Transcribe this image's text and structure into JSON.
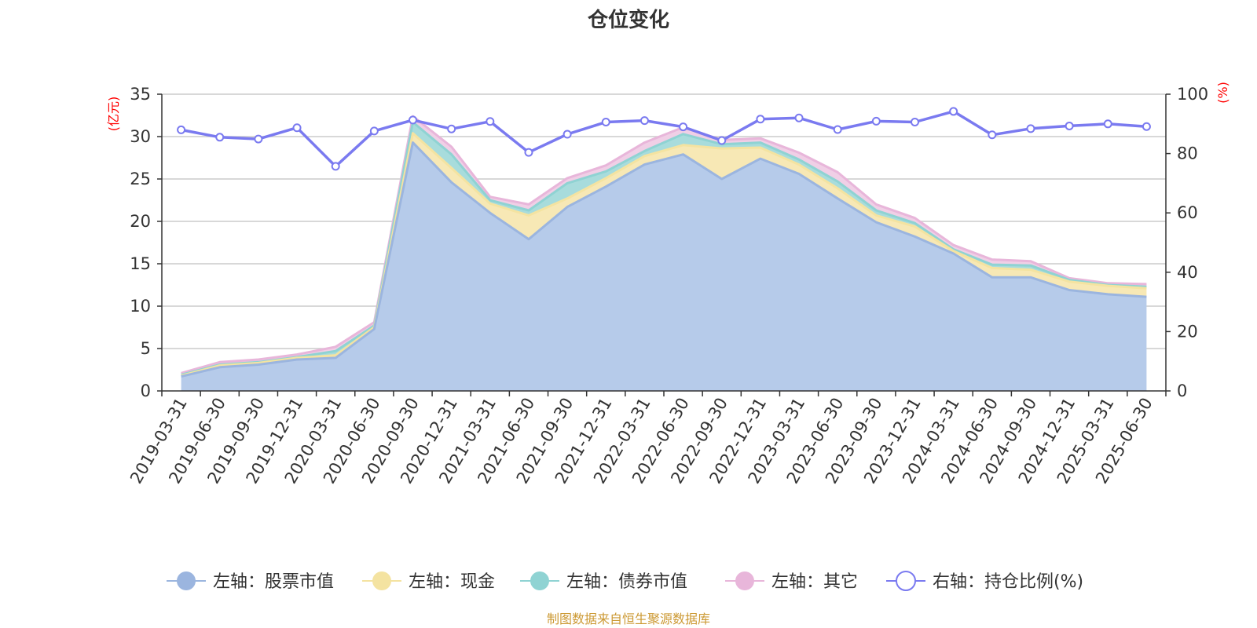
{
  "title": "仓位变化",
  "source_note": "制图数据来自恒生聚源数据库",
  "chart_data": {
    "type": "area",
    "title": "仓位变化",
    "categories": [
      "2019-03-31",
      "2019-06-30",
      "2019-09-30",
      "2019-12-31",
      "2020-03-31",
      "2020-06-30",
      "2020-09-30",
      "2020-12-31",
      "2021-03-31",
      "2021-06-30",
      "2021-09-30",
      "2021-12-31",
      "2022-03-31",
      "2022-06-30",
      "2022-09-30",
      "2022-12-31",
      "2023-03-31",
      "2023-06-30",
      "2023-09-30",
      "2023-12-31",
      "2024-03-31",
      "2024-06-30",
      "2024-09-30",
      "2024-12-31",
      "2025-03-31",
      "2025-06-30"
    ],
    "y_left": {
      "label": "(亿元)",
      "min": 0,
      "max": 35,
      "ticks": [
        0,
        5,
        10,
        15,
        20,
        25,
        30,
        35
      ]
    },
    "y_right": {
      "label": "(%)",
      "min": 0,
      "max": 100,
      "ticks": [
        0,
        20,
        40,
        60,
        80,
        100
      ]
    },
    "grid": true,
    "legend_position": "bottom",
    "stack_order": [
      "stock",
      "cash",
      "bond",
      "other"
    ],
    "series": [
      {
        "key": "stock",
        "name": "左轴：股票市值",
        "axis": "left",
        "kind": "stacked-area",
        "fill": "#b6cbea",
        "stroke": "#9bb5df",
        "values": [
          1.7,
          2.8,
          3.1,
          3.7,
          3.9,
          7.3,
          29.3,
          24.6,
          21.0,
          17.9,
          21.7,
          24.1,
          26.7,
          27.9,
          25.0,
          27.4,
          25.6,
          22.7,
          19.9,
          18.2,
          16.2,
          13.4,
          13.4,
          11.9,
          11.4,
          11.1
        ]
      },
      {
        "key": "cash",
        "name": "左轴：现金",
        "axis": "left",
        "kind": "stacked-area",
        "fill": "#f7e8b5",
        "stroke": "#f4e3a1",
        "values": [
          0.1,
          0.2,
          0.2,
          0.2,
          0.3,
          0.2,
          1.1,
          1.7,
          1.1,
          2.8,
          1.0,
          1.0,
          1.0,
          1.1,
          3.6,
          1.3,
          1.1,
          1.2,
          0.8,
          1.2,
          0.3,
          1.1,
          0.9,
          1.0,
          1.0,
          1.0
        ]
      },
      {
        "key": "bond",
        "name": "左轴：债券市值",
        "axis": "left",
        "kind": "stacked-area",
        "fill": "#a8dcdc",
        "stroke": "#8fd3d3",
        "values": [
          0.1,
          0.1,
          0.1,
          0.1,
          0.5,
          0.2,
          1.3,
          1.6,
          0.4,
          0.6,
          1.8,
          0.8,
          0.6,
          1.3,
          0.5,
          0.6,
          0.6,
          0.8,
          0.6,
          0.4,
          0.2,
          0.4,
          0.5,
          0.2,
          0.1,
          0.2
        ]
      },
      {
        "key": "other",
        "name": "左轴：其它",
        "axis": "left",
        "kind": "stacked-area",
        "fill": "#f0cfe6",
        "stroke": "#e8b6da",
        "values": [
          0.2,
          0.3,
          0.3,
          0.3,
          0.5,
          0.4,
          0.7,
          0.9,
          0.4,
          0.7,
          0.6,
          0.7,
          1.0,
          0.8,
          0.5,
          0.5,
          0.8,
          1.1,
          0.7,
          0.6,
          0.5,
          0.6,
          0.5,
          0.2,
          0.2,
          0.3
        ]
      },
      {
        "key": "ratio",
        "name": "右轴：持仓比例(%)",
        "axis": "right",
        "kind": "line",
        "stroke": "#7a7af0",
        "values": [
          88.0,
          85.5,
          84.9,
          88.7,
          75.7,
          87.6,
          91.3,
          88.3,
          90.8,
          80.4,
          86.5,
          90.6,
          91.1,
          89.0,
          84.4,
          91.6,
          92.0,
          88.1,
          90.9,
          90.6,
          94.2,
          86.3,
          88.4,
          89.3,
          90.0,
          89.1
        ]
      }
    ]
  }
}
